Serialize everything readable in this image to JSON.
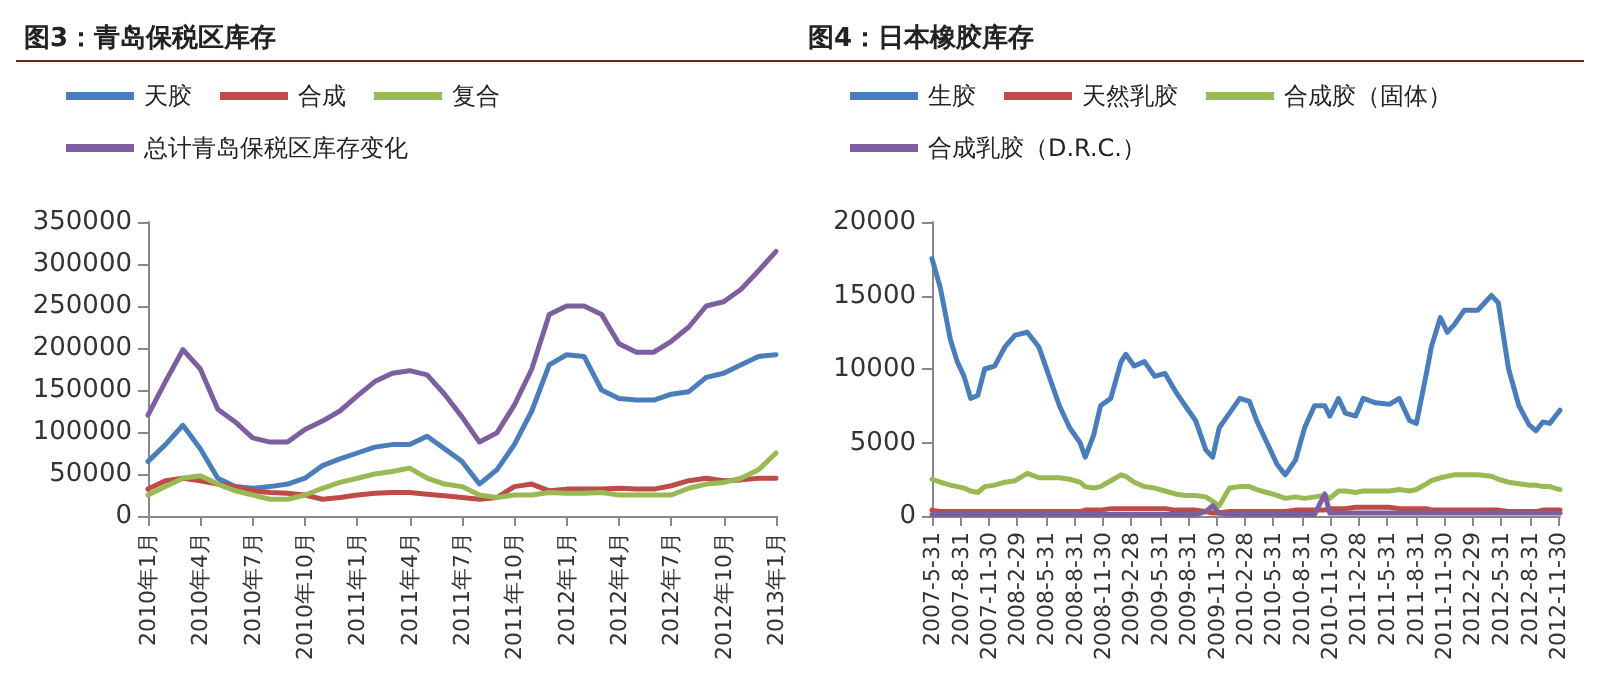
{
  "chart_data": [
    {
      "type": "line",
      "title": "图3：青岛保税区库存",
      "legend": "top",
      "grid": false,
      "marker": "none",
      "line_style": "solid",
      "categories": [
        "2010年1月",
        null,
        null,
        "2010年4月",
        null,
        null,
        "2010年7月",
        null,
        null,
        "2010年10月",
        null,
        null,
        "2011年1月",
        null,
        null,
        "2011年4月",
        null,
        null,
        "2011年7月",
        null,
        null,
        "2011年10月",
        null,
        null,
        "2012年1月",
        null,
        null,
        "2012年4月",
        null,
        null,
        "2012年7月",
        null,
        null,
        "2012年10月",
        null,
        null,
        "2013年1月"
      ],
      "ylim": [
        0,
        350000
      ],
      "yticks": [
        0,
        50000,
        100000,
        150000,
        200000,
        250000,
        300000,
        350000
      ],
      "series": [
        {
          "name": "天胶",
          "color": "#4a7ebb",
          "values": [
            65000,
            85000,
            108000,
            80000,
            45000,
            35000,
            33000,
            35000,
            38000,
            45000,
            60000,
            68000,
            75000,
            82000,
            85000,
            85000,
            95000,
            80000,
            65000,
            38000,
            55000,
            85000,
            125000,
            180000,
            192000,
            190000,
            150000,
            140000,
            138000,
            138000,
            145000,
            148000,
            165000,
            170000,
            180000,
            190000,
            192000
          ]
        },
        {
          "name": "合成",
          "color": "#be4b48",
          "values": [
            32000,
            42000,
            45000,
            42000,
            38000,
            35000,
            30000,
            28000,
            27000,
            25000,
            20000,
            22000,
            25000,
            27000,
            28000,
            28000,
            26000,
            24000,
            22000,
            20000,
            22000,
            35000,
            38000,
            30000,
            32000,
            32000,
            32000,
            33000,
            32000,
            32000,
            36000,
            42000,
            45000,
            42000,
            43000,
            45000,
            45000
          ]
        },
        {
          "name": "复合",
          "color": "#98b954",
          "values": [
            25000,
            35000,
            45000,
            48000,
            38000,
            30000,
            25000,
            20000,
            20000,
            25000,
            33000,
            40000,
            45000,
            50000,
            53000,
            57000,
            45000,
            38000,
            35000,
            25000,
            22000,
            25000,
            25000,
            28000,
            27000,
            27000,
            28000,
            25000,
            25000,
            25000,
            25000,
            33000,
            38000,
            40000,
            45000,
            55000,
            75000
          ]
        },
        {
          "name": "总计青岛保税区库存变化",
          "color": "#7d5fa0",
          "values": [
            120000,
            160000,
            198000,
            175000,
            127000,
            112000,
            93000,
            88000,
            88000,
            103000,
            113000,
            125000,
            143000,
            160000,
            170000,
            173000,
            168000,
            145000,
            118000,
            88000,
            99000,
            132000,
            175000,
            240000,
            250000,
            250000,
            240000,
            205000,
            195000,
            195000,
            208000,
            225000,
            250000,
            255000,
            270000,
            292000,
            315000
          ]
        }
      ]
    },
    {
      "type": "line",
      "title": "图4：日本橡胶库存",
      "legend": "top",
      "grid": false,
      "marker": "none",
      "line_style": "solid",
      "x": [
        "2007-05-31",
        "2007-06-27",
        "2007-07-29",
        "2007-08-20",
        "2007-09-11",
        "2007-10-02",
        "2007-10-25",
        "2007-11-16",
        "2007-12-18",
        "2008-01-20",
        "2008-02-22",
        "2008-04-01",
        "2008-05-08",
        "2008-06-10",
        "2008-07-13",
        "2008-08-15",
        "2008-09-17",
        "2008-10-04",
        "2008-10-31",
        "2008-11-22",
        "2008-12-25",
        "2009-01-27",
        "2009-02-11",
        "2009-03-10",
        "2009-04-12",
        "2009-05-15",
        "2009-06-17",
        "2009-07-20",
        "2009-08-21",
        "2009-09-23",
        "2009-10-26",
        "2009-11-17",
        "2009-12-08",
        "2010-01-10",
        "2010-02-12",
        "2010-03-15",
        "2010-04-07",
        "2010-05-10",
        "2010-06-12",
        "2010-07-08",
        "2010-08-10",
        "2010-09-08",
        "2010-10-10",
        "2010-11-12",
        "2010-11-28",
        "2010-12-26",
        "2011-01-17",
        "2011-02-19",
        "2011-03-15",
        "2011-04-24",
        "2011-06-07",
        "2011-07-09",
        "2011-08-11",
        "2011-09-02",
        "2011-10-05",
        "2011-10-20",
        "2011-11-18",
        "2011-12-10",
        "2012-01-01",
        "2012-02-03",
        "2012-03-17",
        "2012-04-30",
        "2012-05-22",
        "2012-06-24",
        "2012-07-27",
        "2012-08-29",
        "2012-09-20",
        "2012-10-12",
        "2012-11-03",
        "2012-12-06"
      ],
      "xlim": [
        "2007-05-31",
        "2012-12-06"
      ],
      "xticks": [
        {
          "value": "2007-05-31",
          "label": "2007-5-31"
        },
        {
          "value": "2007-08-31",
          "label": "2007-8-31"
        },
        {
          "value": "2007-11-30",
          "label": "2007-11-30"
        },
        {
          "value": "2008-02-29",
          "label": "2008-2-29"
        },
        {
          "value": "2008-05-31",
          "label": "2008-5-31"
        },
        {
          "value": "2008-08-31",
          "label": "2008-8-31"
        },
        {
          "value": "2008-11-30",
          "label": "2008-11-30"
        },
        {
          "value": "2009-02-28",
          "label": "2009-2-28"
        },
        {
          "value": "2009-05-31",
          "label": "2009-5-31"
        },
        {
          "value": "2009-08-31",
          "label": "2009-8-31"
        },
        {
          "value": "2009-11-30",
          "label": "2009-11-30"
        },
        {
          "value": "2010-02-28",
          "label": "2010-2-28"
        },
        {
          "value": "2010-05-31",
          "label": "2010-5-31"
        },
        {
          "value": "2010-08-31",
          "label": "2010-8-31"
        },
        {
          "value": "2010-11-30",
          "label": "2010-11-30"
        },
        {
          "value": "2011-02-28",
          "label": "2011-2-28"
        },
        {
          "value": "2011-05-31",
          "label": "2011-5-31"
        },
        {
          "value": "2011-08-31",
          "label": "2011-8-31"
        },
        {
          "value": "2011-11-30",
          "label": "2011-11-30"
        },
        {
          "value": "2012-02-29",
          "label": "2012-2-29"
        },
        {
          "value": "2012-05-31",
          "label": "2012-5-31"
        },
        {
          "value": "2012-08-31",
          "label": "2012-8-31"
        },
        {
          "value": "2012-11-30",
          "label": "2012-11-30"
        }
      ],
      "ylim": [
        0,
        20000
      ],
      "yticks": [
        0,
        5000,
        10000,
        15000,
        20000
      ],
      "series": [
        {
          "name": "生胶",
          "color": "#4a7ebb",
          "values": [
            17500,
            15500,
            12000,
            10500,
            9500,
            8000,
            8200,
            10000,
            10200,
            11500,
            12300,
            12500,
            11500,
            9500,
            7500,
            6000,
            5000,
            4000,
            5500,
            7500,
            8000,
            10500,
            11000,
            10200,
            10500,
            9500,
            9700,
            8500,
            7500,
            6500,
            4500,
            4000,
            6000,
            7000,
            8000,
            7800,
            6500,
            5000,
            3500,
            2800,
            3800,
            6000,
            7500,
            7500,
            6800,
            8000,
            7000,
            6800,
            8000,
            7700,
            7600,
            8000,
            6500,
            6300,
            9800,
            11500,
            13500,
            12500,
            13000,
            14000,
            14000,
            15000,
            14500,
            10000,
            7500,
            6200,
            5800,
            6400,
            6300,
            7200
          ]
        },
        {
          "name": "天然乳胶",
          "color": "#be4b48",
          "values": [
            400,
            300,
            300,
            300,
            300,
            300,
            300,
            300,
            300,
            300,
            300,
            300,
            300,
            300,
            300,
            300,
            300,
            400,
            400,
            400,
            500,
            500,
            500,
            500,
            500,
            500,
            500,
            400,
            400,
            400,
            300,
            200,
            200,
            300,
            300,
            300,
            300,
            300,
            300,
            300,
            400,
            400,
            400,
            400,
            500,
            500,
            500,
            600,
            600,
            600,
            600,
            500,
            500,
            500,
            500,
            400,
            400,
            400,
            400,
            400,
            400,
            400,
            400,
            300,
            300,
            300,
            300,
            400,
            400,
            400
          ]
        },
        {
          "name": "合成胶（固体）",
          "color": "#98b954",
          "values": [
            2500,
            2300,
            2100,
            2000,
            1900,
            1700,
            1600,
            2000,
            2100,
            2300,
            2400,
            2900,
            2600,
            2600,
            2600,
            2500,
            2300,
            2000,
            1900,
            2000,
            2400,
            2800,
            2700,
            2300,
            2000,
            1900,
            1700,
            1500,
            1400,
            1400,
            1300,
            1000,
            700,
            1900,
            2000,
            2000,
            1800,
            1600,
            1400,
            1200,
            1300,
            1200,
            1300,
            1400,
            1200,
            1700,
            1700,
            1600,
            1700,
            1700,
            1700,
            1800,
            1700,
            1800,
            2200,
            2400,
            2600,
            2700,
            2800,
            2800,
            2800,
            2700,
            2500,
            2300,
            2200,
            2100,
            2100,
            2000,
            2000,
            1800
          ]
        },
        {
          "name": "合成乳胶（D.R.C.）",
          "color": "#7d5fa0",
          "values": [
            100,
            100,
            100,
            100,
            100,
            100,
            100,
            100,
            100,
            100,
            100,
            100,
            100,
            100,
            100,
            100,
            100,
            100,
            100,
            100,
            100,
            100,
            100,
            100,
            100,
            100,
            100,
            100,
            100,
            100,
            300,
            700,
            200,
            100,
            100,
            100,
            100,
            100,
            100,
            100,
            100,
            100,
            100,
            1500,
            200,
            200,
            200,
            200,
            200,
            200,
            200,
            200,
            200,
            200,
            200,
            200,
            200,
            200,
            200,
            200,
            200,
            200,
            200,
            200,
            200,
            200,
            200,
            200,
            200,
            200
          ]
        }
      ]
    }
  ]
}
